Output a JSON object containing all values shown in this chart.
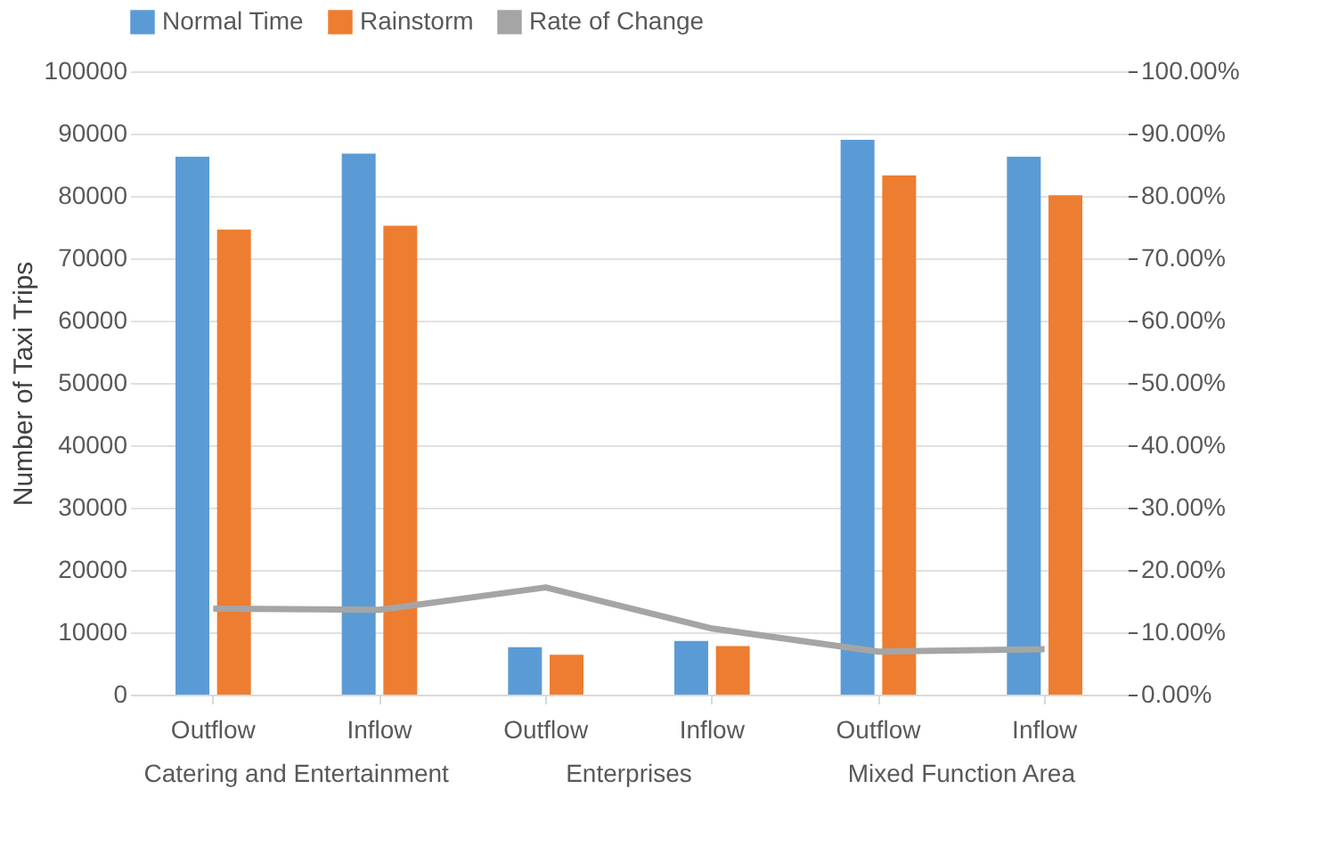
{
  "chart_data": {
    "type": "bar",
    "categories": [
      "Outflow",
      "Inflow",
      "Outflow",
      "Inflow",
      "Outflow",
      "Inflow"
    ],
    "series": [
      {
        "name": "Normal Time",
        "color": "#5b9bd5",
        "values": [
          86300,
          86800,
          7600,
          8600,
          89000,
          86300
        ]
      },
      {
        "name": "Rainstorm",
        "color": "#ed7d31",
        "values": [
          74600,
          75200,
          6400,
          7800,
          83300,
          80100
        ]
      },
      {
        "name": "Rate of Change",
        "color": "#a5a5a5",
        "type": "line",
        "axis": "y2",
        "values": [
          13.8,
          13.6,
          17.2,
          10.6,
          6.9,
          7.3
        ]
      }
    ],
    "ylabel": "Number of Taxi Trips",
    "ylim": [
      0,
      100000
    ],
    "yticks": [
      0,
      10000,
      20000,
      30000,
      40000,
      50000,
      60000,
      70000,
      80000,
      90000,
      100000
    ],
    "y2lim": [
      0,
      100
    ],
    "y2ticks": [
      {
        "value": 0,
        "label": "0.00%"
      },
      {
        "value": 10,
        "label": "10.00%"
      },
      {
        "value": 20,
        "label": "20.00%"
      },
      {
        "value": 30,
        "label": "30.00%"
      },
      {
        "value": 40,
        "label": "40.00%"
      },
      {
        "value": 50,
        "label": "50.00%"
      },
      {
        "value": 60,
        "label": "60.00%"
      },
      {
        "value": 70,
        "label": "70.00%"
      },
      {
        "value": 80,
        "label": "80.00%"
      },
      {
        "value": 90,
        "label": "90.00%"
      },
      {
        "value": 100,
        "label": "100.00%"
      }
    ],
    "annotations": [
      "Catering and Entertainment",
      "Enterprises",
      "Mixed Function Area"
    ],
    "grid": "y",
    "legend": "top"
  }
}
